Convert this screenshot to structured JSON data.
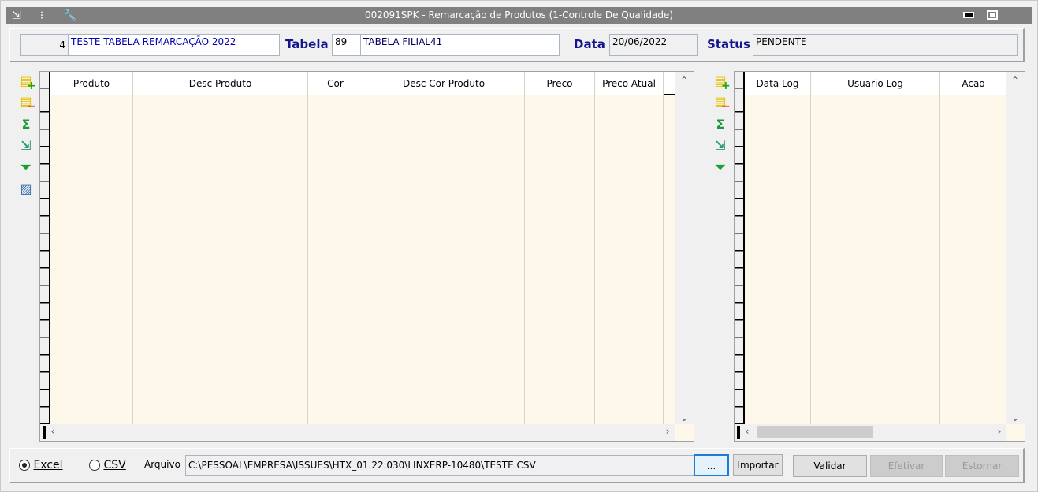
{
  "window": {
    "title": "002091SPK - Remarcação de Produtos (1-Controle De Qualidade)",
    "minimize_icon": "minimize-icon",
    "restore_icon": "restore-icon"
  },
  "header": {
    "code": "4",
    "description": "TESTE TABELA REMARCAÇÃO 2022",
    "tabela_label": "Tabela",
    "tabela_code": "89",
    "tabela_desc": "TABELA FILIAL41",
    "data_label": "Data",
    "data_value": "20/06/2022",
    "status_label": "Status",
    "status_value": "PENDENTE"
  },
  "products_grid": {
    "columns": [
      "Produto",
      "Desc Produto",
      "Cor",
      "Desc Cor Produto",
      "Preco",
      "Preco Atual"
    ],
    "rows": []
  },
  "log_grid": {
    "columns": [
      "Data Log",
      "Usuario Log",
      "Acao"
    ],
    "rows": []
  },
  "footer": {
    "excel_label": "Excel",
    "csv_label": "CSV",
    "selected_format": "Excel",
    "arquivo_label": "Arquivo",
    "arquivo_value": "C:\\PESSOAL\\EMPRESA\\ISSUES\\HTX_01.22.030\\LINXERP-10480\\TESTE.CSV",
    "browse_label": "...",
    "importar_label": "Importar",
    "validar_label": "Validar",
    "efetivar_label": "Efetivar",
    "estornar_label": "Estornar"
  }
}
